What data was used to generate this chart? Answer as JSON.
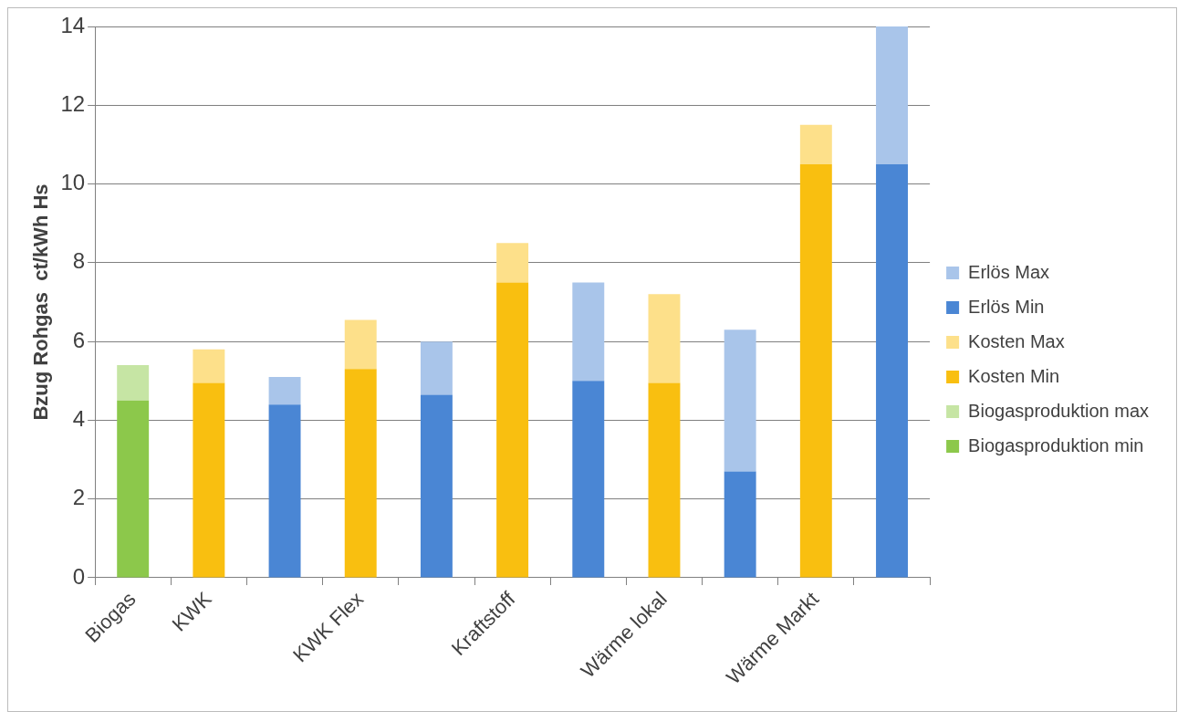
{
  "chart_data": {
    "type": "bar",
    "stacked": true,
    "ylabel": "Bzug Rohgas  ct/kWh Hs",
    "categories": [
      "Biogas",
      "KWK",
      null,
      "KWK Flex",
      null,
      "Kraftstoff",
      null,
      "Wärme lokal",
      null,
      "Wärme Markt",
      null
    ],
    "series": [
      {
        "name": "Biogasproduktion min",
        "color": "#8cc84b",
        "values": [
          4.5,
          null,
          null,
          null,
          null,
          null,
          null,
          null,
          null,
          null,
          null
        ]
      },
      {
        "name": "Biogasproduktion max",
        "color": "#c6e5a4",
        "values": [
          0.9,
          null,
          null,
          null,
          null,
          null,
          null,
          null,
          null,
          null,
          null
        ]
      },
      {
        "name": "Kosten Min",
        "color": "#f9bf10",
        "values": [
          null,
          4.95,
          null,
          5.3,
          null,
          7.5,
          null,
          4.95,
          null,
          10.5,
          null
        ]
      },
      {
        "name": "Kosten Max",
        "color": "#fde08a",
        "values": [
          null,
          0.85,
          null,
          1.25,
          null,
          1,
          null,
          2.25,
          null,
          1,
          null
        ]
      },
      {
        "name": "Erlös Min",
        "color": "#4a86d4",
        "values": [
          null,
          null,
          4.4,
          null,
          4.65,
          null,
          5,
          null,
          2.7,
          null,
          10.5
        ]
      },
      {
        "name": "Erlös Max",
        "color": "#a9c5ea",
        "values": [
          null,
          null,
          0.7,
          null,
          1.35,
          null,
          2.5,
          null,
          3.6,
          null,
          3.5
        ]
      }
    ],
    "ylim": [
      0,
      14
    ],
    "yticks": [
      0,
      2,
      4,
      6,
      8,
      10,
      12,
      14
    ],
    "grid": "y",
    "legend": "right"
  }
}
